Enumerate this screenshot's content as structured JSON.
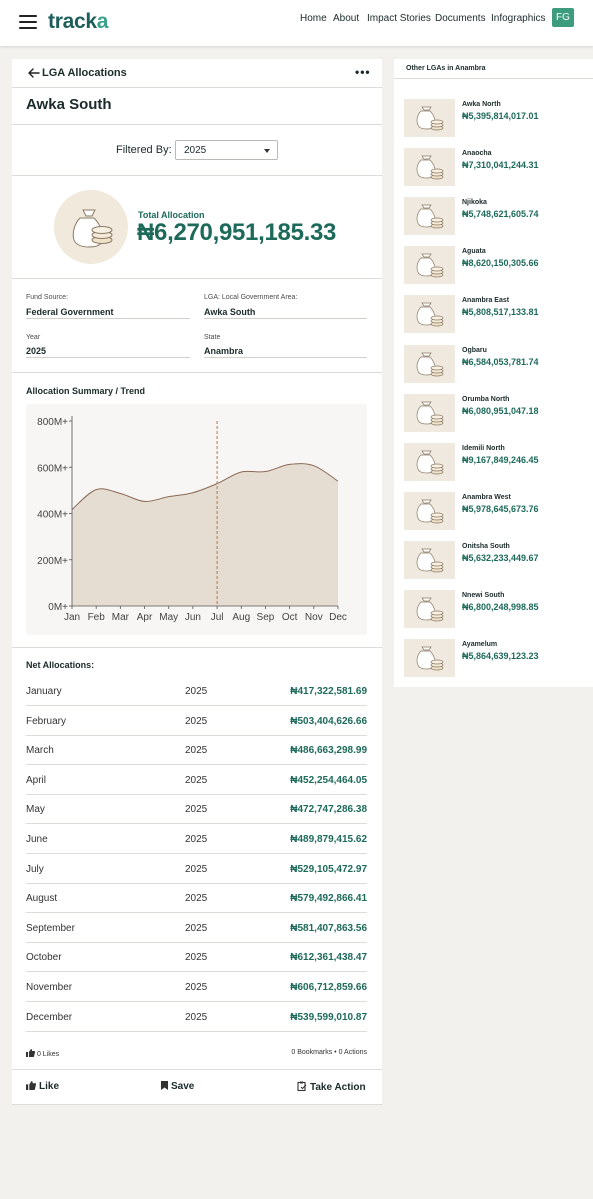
{
  "header": {
    "logo_main": "track",
    "logo_accent": "a",
    "nav": [
      "Home",
      "About",
      "Impact Stories",
      "Documents",
      "Infographics"
    ],
    "avatar_initials": "FG"
  },
  "card": {
    "title": "LGA Allocations",
    "lga_name": "Awka South",
    "filter_label": "Filtered By:",
    "filter_value": "2025",
    "total_label": "Total Allocation",
    "total_value": "₦6,270,951,185.33"
  },
  "fields": {
    "fund_source_label": "Fund Source:",
    "fund_source_value": "Federal Government",
    "lga_label": "LGA: Local Government Area:",
    "lga_value": "Awka South",
    "year_label": "Year",
    "year_value": "2025",
    "state_label": "State",
    "state_value": "Anambra"
  },
  "chart_title": "Allocation Summary / Trend",
  "chart_data": {
    "type": "area",
    "categories": [
      "Jan",
      "Feb",
      "Mar",
      "Apr",
      "May",
      "Jun",
      "Jul",
      "Aug",
      "Sep",
      "Oct",
      "Nov",
      "Dec"
    ],
    "series": [
      {
        "values": [
          417.32,
          503.4,
          486.66,
          452.25,
          472.75,
          489.88,
          529.11,
          579.49,
          581.41,
          612.36,
          606.71,
          539.6
        ]
      }
    ],
    "ytick_labels": [
      "0M+",
      "200M+",
      "400M+",
      "600M+",
      "800M+"
    ],
    "ylim": [
      0,
      800
    ],
    "grid": false,
    "marker_category": "Jul",
    "fill_color": "#e6ddd2",
    "line_color": "#8a6a56"
  },
  "net_allocations": {
    "title": "Net Allocations:",
    "rows": [
      {
        "month": "January",
        "year": "2025",
        "amount": "₦417,322,581.69"
      },
      {
        "month": "February",
        "year": "2025",
        "amount": "₦503,404,626.66"
      },
      {
        "month": "March",
        "year": "2025",
        "amount": "₦486,663,298.99"
      },
      {
        "month": "April",
        "year": "2025",
        "amount": "₦452,254,464.05"
      },
      {
        "month": "May",
        "year": "2025",
        "amount": "₦472,747,286.38"
      },
      {
        "month": "June",
        "year": "2025",
        "amount": "₦489,879,415.62"
      },
      {
        "month": "July",
        "year": "2025",
        "amount": "₦529,105,472.97"
      },
      {
        "month": "August",
        "year": "2025",
        "amount": "₦579,492,866.41"
      },
      {
        "month": "September",
        "year": "2025",
        "amount": "₦581,407,863.56"
      },
      {
        "month": "October",
        "year": "2025",
        "amount": "₦612,361,438.47"
      },
      {
        "month": "November",
        "year": "2025",
        "amount": "₦606,712,859.66"
      },
      {
        "month": "December",
        "year": "2025",
        "amount": "₦539,599,010.87"
      }
    ]
  },
  "engagement": {
    "likes": "0 Likes",
    "bookmarks_actions": "0 Bookmarks  •  0 Actions",
    "like_label": "Like",
    "save_label": "Save",
    "take_action_label": "Take Action"
  },
  "sidebar": {
    "title": "Other LGAs in Anambra",
    "items": [
      {
        "name": "Awka North",
        "value": "₦5,395,814,017.01"
      },
      {
        "name": "Anaocha",
        "value": "₦7,310,041,244.31"
      },
      {
        "name": "Njikoka",
        "value": "₦5,748,621,605.74"
      },
      {
        "name": "Aguata",
        "value": "₦8,620,150,305.66"
      },
      {
        "name": "Anambra East",
        "value": "₦5,808,517,133.81"
      },
      {
        "name": "Ogbaru",
        "value": "₦6,584,053,781.74"
      },
      {
        "name": "Orumba North",
        "value": "₦6,080,951,047.18"
      },
      {
        "name": "Idemili North",
        "value": "₦9,167,849,246.45"
      },
      {
        "name": "Anambra West",
        "value": "₦5,978,645,673.76"
      },
      {
        "name": "Onitsha South",
        "value": "₦5,632,233,449.67"
      },
      {
        "name": "Nnewi South",
        "value": "₦6,800,248,998.85"
      },
      {
        "name": "Ayamelum",
        "value": "₦5,864,639,123.23"
      }
    ]
  },
  "colors": {
    "brand": "#1e5e5a",
    "accent": "#3aa28c",
    "money": "#1d6a5a"
  }
}
